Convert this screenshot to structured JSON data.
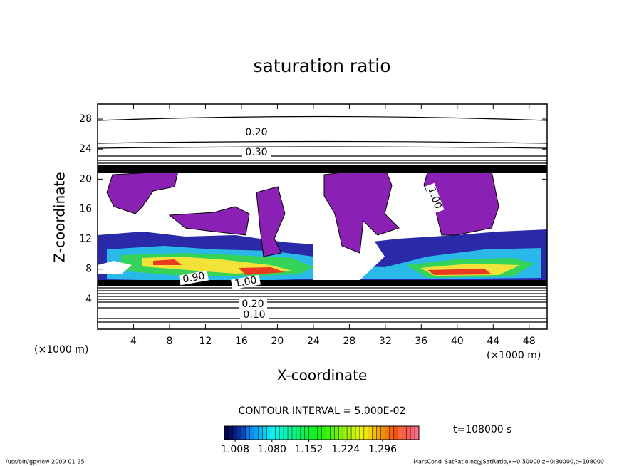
{
  "chart_data": {
    "type": "contour",
    "title": "saturation ratio",
    "xlabel": "X-coordinate",
    "ylabel": "Z-coordinate",
    "xunit": "(×1000 m)",
    "yunit": "(×1000 m)",
    "xlim": [
      0,
      50
    ],
    "ylim": [
      0,
      30
    ],
    "xticks": [
      4,
      8,
      12,
      16,
      20,
      24,
      28,
      32,
      36,
      40,
      44,
      48
    ],
    "yticks": [
      4,
      8,
      12,
      16,
      20,
      24,
      28
    ],
    "contour_labels": [
      {
        "value": 0.1,
        "label": "0.10"
      },
      {
        "value": 0.2,
        "label": "0.20"
      },
      {
        "value": 0.3,
        "label": "0.30"
      },
      {
        "value": 0.9,
        "label": "0.90"
      },
      {
        "value": 1.0,
        "label": "1.00"
      }
    ],
    "contour_interval": "CONTOUR INTERVAL = 5.000E-02",
    "colorbar_lim": [
      0.987,
      1.367
    ],
    "colorbar_ticks": [
      1.008,
      {
        "value": 1.08,
        "label": "1.080"
      },
      1.152,
      1.224,
      1.296
    ],
    "time": "t=108000 s",
    "footer_left": "/usr/bin/gpview  2009-01-25",
    "footer_right": "MarsCond_SatRatio.nc@SatRatio,x=0:50000,z=0:30000,t=108000"
  }
}
